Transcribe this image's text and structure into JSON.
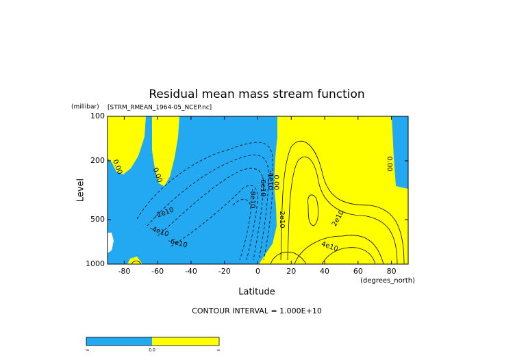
{
  "chart_data": {
    "type": "contour",
    "title": "Residual mean mass stream function",
    "subtitle": "[STRM_RMEAN_1964-05_NCEP.nc]",
    "y_unit": "(millibar)",
    "x_unit": "(degrees_north)",
    "xlabel": "Latitude",
    "ylabel": "Level",
    "footnote": "CONTOUR INTERVAL = 1.000E+10",
    "xlim": [
      -90,
      90
    ],
    "xticks": [
      -80,
      -60,
      -40,
      -20,
      0,
      20,
      40,
      60,
      80
    ],
    "ylim": [
      1000,
      100
    ],
    "yticks": [
      100,
      200,
      500,
      1000
    ],
    "ylog": true,
    "colors": {
      "negative": "#22a9f2",
      "positive": "#ffff00"
    },
    "contour_labels": [
      {
        "text": "0.00",
        "x": -84,
        "y": 220
      },
      {
        "text": "0.00",
        "x": -60,
        "y": 250
      },
      {
        "text": "-2e10",
        "x": -56,
        "y": 450
      },
      {
        "text": "-4e10",
        "x": -59,
        "y": 600
      },
      {
        "text": "-6e10",
        "x": -48,
        "y": 720
      },
      {
        "text": "-8e10",
        "x": -3,
        "y": 360
      },
      {
        "text": "-6e10",
        "x": 3,
        "y": 300
      },
      {
        "text": "-4e10",
        "x": 7.5,
        "y": 270
      },
      {
        "text": "0.00",
        "x": 11,
        "y": 280
      },
      {
        "text": "2e10",
        "x": 14.5,
        "y": 500
      },
      {
        "text": "2e10",
        "x": 48,
        "y": 490
      },
      {
        "text": "4e10",
        "x": 43,
        "y": 760
      },
      {
        "text": "0.00",
        "x": 79,
        "y": 210
      }
    ],
    "colorbar": {
      "labels": [
        "-∞",
        "0.0",
        "∞"
      ]
    }
  }
}
